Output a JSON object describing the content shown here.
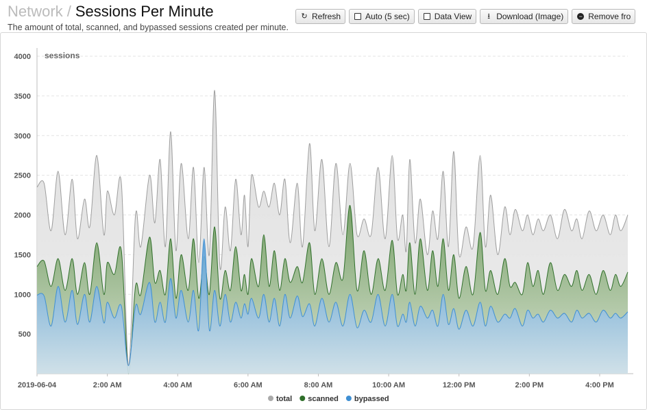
{
  "header": {
    "breadcrumb_parent": "Network",
    "separator": "/",
    "title": "Sessions Per Minute",
    "subtitle": "The amount of total, scanned, and bypassed sessions created per minute."
  },
  "toolbar": {
    "refresh": "Refresh",
    "auto": "Auto (5 sec)",
    "data_view": "Data View",
    "download": "Download (Image)",
    "remove": "Remove fro"
  },
  "colors": {
    "total_line": "#9e9e9e",
    "total_fill": "#dcdcdc",
    "scanned_line": "#2f6f2a",
    "scanned_fill": "#6f9a5e",
    "bypassed_line": "#3f8fd3",
    "bypassed_fill": "#5ba0d8",
    "grid": "#e3e3e3"
  },
  "chart_data": {
    "type": "area",
    "ylabel": "sessions",
    "ylim": [
      0,
      4000
    ],
    "yticks": [
      "4000",
      "3500",
      "3000",
      "2500",
      "2000",
      "1500",
      "1000",
      "500"
    ],
    "xlabels": [
      "2019-06-04",
      "2:00 AM",
      "4:00 AM",
      "6:00 AM",
      "8:00 AM",
      "10:00 AM",
      "12:00 PM",
      "2:00 PM",
      "4:00 PM"
    ],
    "xlabel_hours": [
      0,
      2,
      4,
      6,
      8,
      10,
      12,
      14,
      16
    ],
    "x_hours_range": [
      0,
      16.8
    ],
    "grid": "horizontal dashed",
    "legend_position": "bottom-center",
    "series": [
      {
        "name": "total",
        "x_hours": [
          0,
          0.2,
          0.4,
          0.6,
          0.8,
          1.0,
          1.15,
          1.35,
          1.5,
          1.7,
          1.9,
          2.0,
          2.2,
          2.4,
          2.6,
          2.8,
          2.95,
          3.2,
          3.35,
          3.5,
          3.65,
          3.8,
          3.95,
          4.1,
          4.3,
          4.45,
          4.6,
          4.75,
          4.9,
          5.05,
          5.2,
          5.35,
          5.5,
          5.65,
          5.8,
          5.9,
          6.0,
          6.1,
          6.3,
          6.45,
          6.6,
          6.75,
          6.9,
          7.05,
          7.2,
          7.4,
          7.55,
          7.75,
          7.9,
          8.1,
          8.3,
          8.5,
          8.7,
          8.9,
          9.1,
          9.3,
          9.5,
          9.7,
          9.9,
          10.1,
          10.25,
          10.4,
          10.5,
          10.6,
          10.75,
          10.9,
          11.1,
          11.25,
          11.4,
          11.55,
          11.7,
          11.85,
          12.0,
          12.2,
          12.4,
          12.6,
          12.75,
          12.9,
          13.1,
          13.3,
          13.45,
          13.6,
          13.8,
          13.95,
          14.1,
          14.25,
          14.4,
          14.6,
          14.8,
          15.0,
          15.2,
          15.35,
          15.5,
          15.7,
          15.9,
          16.1,
          16.3,
          16.45,
          16.6,
          16.8
        ],
        "values": [
          2350,
          2400,
          1800,
          2550,
          1750,
          2450,
          1700,
          2200,
          1850,
          2750,
          1750,
          2300,
          2000,
          2400,
          100,
          2000,
          1600,
          2500,
          1900,
          2700,
          1600,
          3050,
          1550,
          2650,
          1700,
          2600,
          1400,
          2600,
          1500,
          3570,
          1350,
          2100,
          1550,
          2450,
          1750,
          2250,
          1600,
          2500,
          2100,
          2300,
          2100,
          2400,
          2000,
          2450,
          1650,
          2400,
          1600,
          2900,
          1800,
          2700,
          1600,
          2650,
          1750,
          2650,
          1750,
          1950,
          1750,
          2600,
          1700,
          2750,
          1700,
          2000,
          1550,
          2700,
          1650,
          2200,
          1500,
          2050,
          1700,
          2550,
          1600,
          2800,
          1500,
          1850,
          1600,
          2750,
          1600,
          2250,
          1500,
          2100,
          1750,
          2070,
          1800,
          2000,
          1750,
          1950,
          1800,
          2000,
          1700,
          2070,
          1800,
          1950,
          1700,
          2050,
          1800,
          2000,
          1750,
          2000,
          1800,
          2000
        ]
      },
      {
        "name": "scanned",
        "x_hours": [
          0,
          0.2,
          0.4,
          0.6,
          0.8,
          1.0,
          1.15,
          1.35,
          1.5,
          1.7,
          1.9,
          2.0,
          2.2,
          2.4,
          2.6,
          2.8,
          2.95,
          3.2,
          3.35,
          3.5,
          3.65,
          3.8,
          3.95,
          4.1,
          4.3,
          4.45,
          4.6,
          4.75,
          4.9,
          5.05,
          5.2,
          5.35,
          5.5,
          5.65,
          5.8,
          5.9,
          6.0,
          6.1,
          6.3,
          6.45,
          6.6,
          6.75,
          6.9,
          7.05,
          7.2,
          7.4,
          7.55,
          7.75,
          7.9,
          8.1,
          8.3,
          8.5,
          8.7,
          8.9,
          9.1,
          9.3,
          9.5,
          9.7,
          9.9,
          10.1,
          10.25,
          10.4,
          10.5,
          10.6,
          10.75,
          10.9,
          11.1,
          11.25,
          11.4,
          11.55,
          11.7,
          11.85,
          12.0,
          12.2,
          12.4,
          12.6,
          12.75,
          12.9,
          13.1,
          13.3,
          13.45,
          13.6,
          13.8,
          13.95,
          14.1,
          14.25,
          14.4,
          14.6,
          14.8,
          15.0,
          15.2,
          15.35,
          15.5,
          15.7,
          15.9,
          16.1,
          16.3,
          16.45,
          16.6,
          16.8
        ],
        "values": [
          1350,
          1420,
          1100,
          1450,
          1050,
          1450,
          1000,
          1400,
          1000,
          1650,
          1000,
          1400,
          1250,
          1550,
          0,
          1100,
          1000,
          1720,
          1150,
          1300,
          1000,
          1700,
          950,
          1500,
          1050,
          1700,
          950,
          1480,
          1000,
          1850,
          950,
          1300,
          1050,
          1600,
          1050,
          1250,
          1000,
          1450,
          1100,
          1750,
          1100,
          1550,
          1050,
          1450,
          1150,
          1350,
          1150,
          1650,
          1000,
          1450,
          1000,
          1400,
          1200,
          2120,
          1050,
          1550,
          1000,
          1450,
          1050,
          1680,
          1000,
          1250,
          1050,
          1650,
          1000,
          1700,
          1050,
          1550,
          1100,
          1700,
          1050,
          1500,
          950,
          1350,
          1000,
          1780,
          1050,
          1300,
          1000,
          1450,
          1100,
          1150,
          1000,
          1400,
          1100,
          1300,
          1000,
          1400,
          1050,
          1250,
          1100,
          1300,
          1050,
          1250,
          1000,
          1300,
          1050,
          1250,
          1100,
          1280
        ]
      },
      {
        "name": "bypassed",
        "x_hours": [
          0,
          0.2,
          0.4,
          0.6,
          0.8,
          1.0,
          1.15,
          1.35,
          1.5,
          1.7,
          1.9,
          2.0,
          2.2,
          2.4,
          2.6,
          2.8,
          2.95,
          3.2,
          3.35,
          3.5,
          3.65,
          3.8,
          3.95,
          4.1,
          4.3,
          4.45,
          4.6,
          4.75,
          4.9,
          5.05,
          5.2,
          5.35,
          5.5,
          5.65,
          5.8,
          5.9,
          6.0,
          6.1,
          6.3,
          6.45,
          6.6,
          6.75,
          6.9,
          7.05,
          7.2,
          7.4,
          7.55,
          7.75,
          7.9,
          8.1,
          8.3,
          8.5,
          8.7,
          8.9,
          9.1,
          9.3,
          9.5,
          9.7,
          9.9,
          10.1,
          10.25,
          10.4,
          10.5,
          10.6,
          10.75,
          10.9,
          11.1,
          11.25,
          11.4,
          11.55,
          11.7,
          11.85,
          12.0,
          12.2,
          12.4,
          12.6,
          12.75,
          12.9,
          13.1,
          13.3,
          13.45,
          13.6,
          13.8,
          13.95,
          14.1,
          14.25,
          14.4,
          14.6,
          14.8,
          15.0,
          15.2,
          15.35,
          15.5,
          15.7,
          15.9,
          16.1,
          16.3,
          16.45,
          16.6,
          16.8
        ],
        "values": [
          990,
          980,
          600,
          1100,
          650,
          1050,
          620,
          1000,
          650,
          1100,
          640,
          900,
          700,
          850,
          100,
          850,
          750,
          1150,
          650,
          900,
          650,
          1200,
          700,
          1050,
          650,
          1050,
          550,
          1700,
          550,
          1050,
          600,
          1000,
          650,
          900,
          700,
          880,
          750,
          950,
          700,
          1000,
          650,
          950,
          600,
          1000,
          700,
          980,
          720,
          880,
          600,
          950,
          650,
          900,
          600,
          1000,
          580,
          800,
          650,
          1000,
          600,
          1000,
          600,
          750,
          650,
          900,
          600,
          850,
          700,
          800,
          600,
          1000,
          620,
          820,
          560,
          800,
          600,
          900,
          600,
          850,
          650,
          750,
          700,
          820,
          600,
          800,
          700,
          750,
          650,
          800,
          700,
          760,
          650,
          800,
          700,
          760,
          650,
          800,
          700,
          760,
          700,
          780
        ]
      }
    ]
  }
}
